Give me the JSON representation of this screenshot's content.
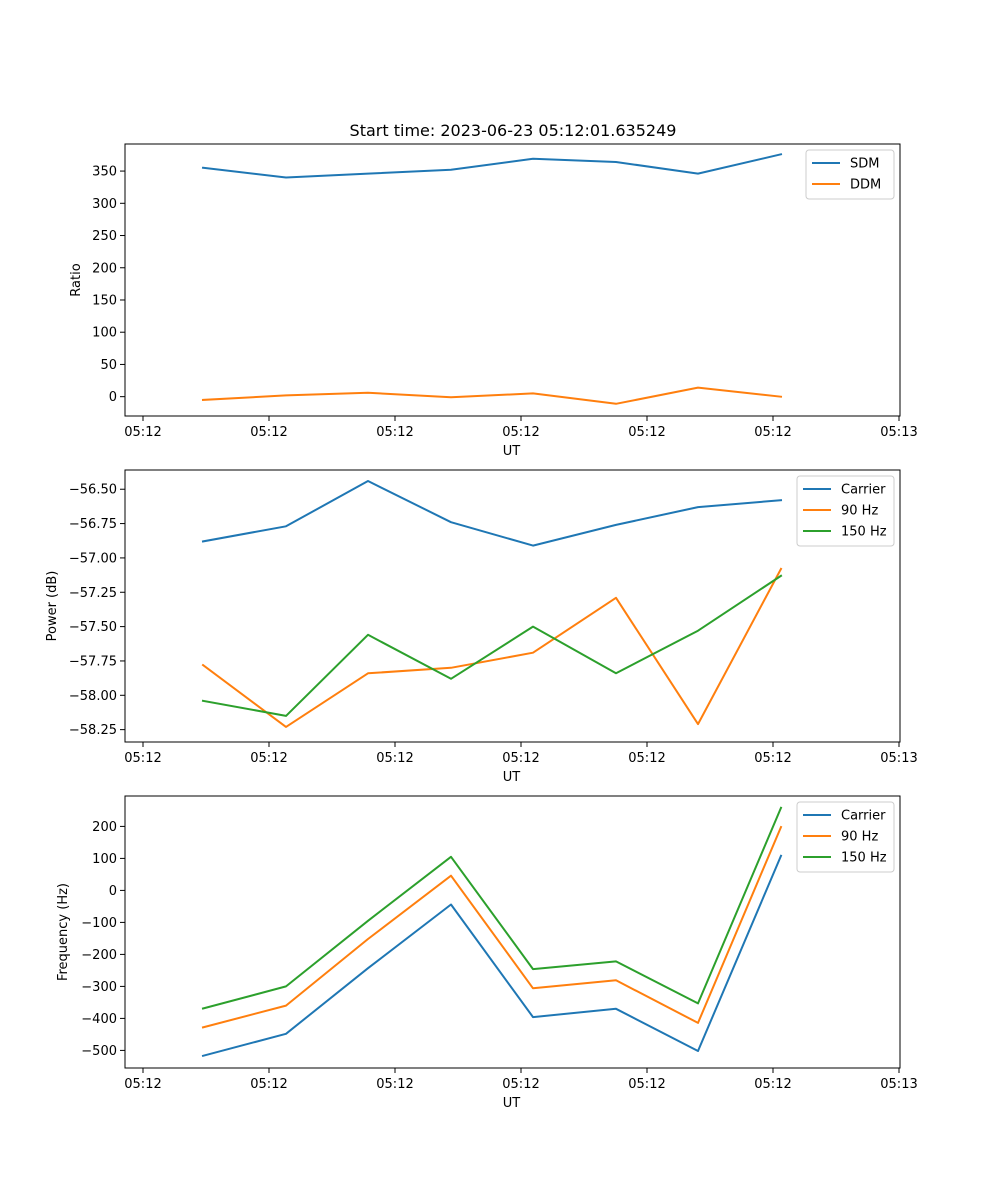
{
  "figure": {
    "title": "Start time: 2023-06-23 05:12:01.635249"
  },
  "chart_data": [
    {
      "type": "line",
      "title": "Start time: 2023-06-23 05:12:01.635249",
      "xlabel": "UT",
      "ylabel": "Ratio",
      "x_tick_labels": [
        "05:12",
        "05:12",
        "05:12",
        "05:12",
        "05:12",
        "05:12",
        "05:13"
      ],
      "y_ticks": [
        0,
        50,
        100,
        150,
        200,
        250,
        300,
        350
      ],
      "y_tick_labels": [
        "0",
        "50",
        "100",
        "150",
        "200",
        "250",
        "300",
        "350"
      ],
      "ylim": [
        -30,
        392
      ],
      "legend_position": "top-right",
      "series": [
        {
          "name": "SDM",
          "color": "#1f77b4",
          "values": [
            355,
            340,
            346,
            352,
            369,
            364,
            346,
            376
          ]
        },
        {
          "name": "DDM",
          "color": "#ff7f0e",
          "values": [
            -5,
            2,
            6,
            -1,
            5,
            -11,
            14,
            0
          ]
        }
      ]
    },
    {
      "type": "line",
      "title": "",
      "xlabel": "UT",
      "ylabel": "Power (dB)",
      "x_tick_labels": [
        "05:12",
        "05:12",
        "05:12",
        "05:12",
        "05:12",
        "05:12",
        "05:13"
      ],
      "y_ticks": [
        -56.5,
        -56.75,
        -57.0,
        -57.25,
        -57.5,
        -57.75,
        -58.0,
        -58.25
      ],
      "y_tick_labels": [
        "−56.50",
        "−56.75",
        "−57.00",
        "−57.25",
        "−57.50",
        "−57.75",
        "−58.00",
        "−58.25"
      ],
      "ylim": [
        -58.34,
        -56.36
      ],
      "legend_position": "top-right",
      "series": [
        {
          "name": "Carrier",
          "color": "#1f77b4",
          "values": [
            -56.88,
            -56.77,
            -56.44,
            -56.74,
            -56.91,
            -56.76,
            -56.63,
            -56.58
          ]
        },
        {
          "name": "90 Hz",
          "color": "#ff7f0e",
          "values": [
            -57.78,
            -58.23,
            -57.84,
            -57.8,
            -57.69,
            -57.29,
            -58.21,
            -57.08
          ]
        },
        {
          "name": "150 Hz",
          "color": "#2ca02c",
          "values": [
            -58.04,
            -58.15,
            -57.56,
            -57.88,
            -57.5,
            -57.84,
            -57.53,
            -57.13
          ]
        }
      ]
    },
    {
      "type": "line",
      "title": "",
      "xlabel": "UT",
      "ylabel": "Frequency (Hz)",
      "x_tick_labels": [
        "05:12",
        "05:12",
        "05:12",
        "05:12",
        "05:12",
        "05:12",
        "05:13"
      ],
      "y_ticks": [
        200,
        100,
        0,
        -100,
        -200,
        -300,
        -400,
        -500
      ],
      "y_tick_labels": [
        "200",
        "100",
        "0",
        "−100",
        "−200",
        "−300",
        "−400",
        "−500"
      ],
      "ylim": [
        -555,
        295
      ],
      "legend_position": "top-right",
      "series": [
        {
          "name": "Carrier",
          "color": "#1f77b4",
          "values": [
            -517,
            -448,
            -243,
            -44,
            -396,
            -370,
            -502,
            108
          ]
        },
        {
          "name": "90 Hz",
          "color": "#ff7f0e",
          "values": [
            -428,
            -360,
            -152,
            46,
            -306,
            -281,
            -414,
            198
          ]
        },
        {
          "name": "150 Hz",
          "color": "#2ca02c",
          "values": [
            -369,
            -300,
            -95,
            105,
            -246,
            -222,
            -353,
            258
          ]
        }
      ]
    }
  ]
}
